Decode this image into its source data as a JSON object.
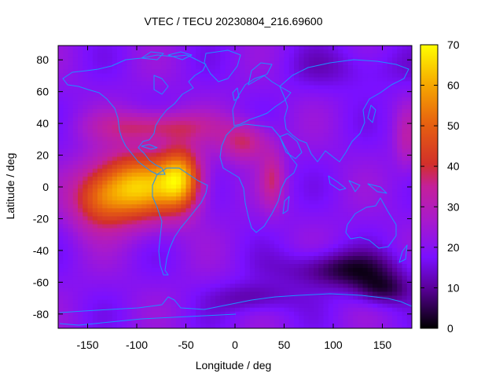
{
  "chart_data": {
    "type": "heatmap",
    "title": "VTEC / TECU 20230804_216.69600",
    "xlabel": "Longitude / deg",
    "ylabel": "Latitude / deg",
    "xlim": [
      -180,
      180
    ],
    "ylim": [
      -89,
      89
    ],
    "x_ticks": [
      -150,
      -100,
      -50,
      0,
      50,
      100,
      150
    ],
    "y_ticks": [
      -80,
      -60,
      -40,
      -20,
      0,
      20,
      40,
      60,
      80
    ],
    "colorbar": {
      "range": [
        0,
        70
      ],
      "ticks": [
        0,
        10,
        20,
        30,
        40,
        50,
        60,
        70
      ],
      "palette": "black-blue-purple-red-orange-yellow"
    },
    "grid_resolution_deg": [
      5,
      2.5
    ],
    "features": [
      {
        "lon": -100,
        "lat": 0,
        "peak": 60,
        "note": "equatorial maximum, eastern Pacific"
      },
      {
        "lon": -55,
        "lat": 5,
        "peak": 58,
        "note": "maximum over northern South America"
      },
      {
        "lon": -130,
        "lat": -10,
        "peak": 45
      },
      {
        "lon": 10,
        "lat": 25,
        "peak": 40,
        "note": "North Africa"
      },
      {
        "lon": 40,
        "lat": 5,
        "peak": 36,
        "note": "East Africa"
      },
      {
        "lon": 100,
        "lat": -50,
        "peak": 5,
        "note": "southern Indian Ocean minimum"
      },
      {
        "lon": 150,
        "lat": -63,
        "peak": 2,
        "note": "minimum near Antarctica"
      }
    ]
  },
  "colors": {
    "coastline": "#1e90ff",
    "background": "#ffffff"
  }
}
